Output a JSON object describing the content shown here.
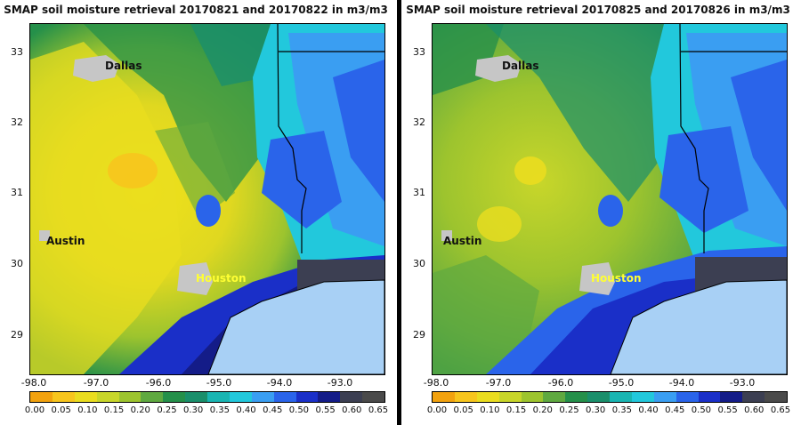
{
  "panels": [
    {
      "title": "SMAP soil moisture retrieval 20170821 and 20170822 in m3/m3",
      "lat_ticks": [
        "33",
        "32",
        "31",
        "30",
        "29"
      ],
      "lon_ticks": [
        "-98.0",
        "-97.0",
        "-96.0",
        "-95.0",
        "-94.0",
        "-93.0"
      ],
      "cities": {
        "dallas": "Dallas",
        "austin": "Austin",
        "houston": "Houston"
      }
    },
    {
      "title": "SMAP soil moisture retrieval 20170825 and 20170826 in m3/m3",
      "lat_ticks": [
        "33",
        "32",
        "31",
        "30",
        "29"
      ],
      "lon_ticks": [
        "-98.0",
        "-97.0",
        "-96.0",
        "-95.0",
        "-94.0",
        "-93.0"
      ],
      "cities": {
        "dallas": "Dallas",
        "austin": "Austin",
        "houston": "Houston"
      }
    }
  ],
  "colorbar": {
    "labels": [
      "0.00",
      "0.05",
      "0.10",
      "0.15",
      "0.20",
      "0.25",
      "0.30",
      "0.35",
      "0.40",
      "0.45",
      "0.50",
      "0.55",
      "0.60",
      "0.65"
    ],
    "colors": [
      "#f2a20f",
      "#f7c51d",
      "#eadd1f",
      "#c8d62a",
      "#9dc42e",
      "#5fa940",
      "#25904a",
      "#1a8f6b",
      "#19b5b2",
      "#22c8dc",
      "#3a9ef2",
      "#2a64ea",
      "#1a2fc8",
      "#141c88",
      "#3c3f52",
      "#4a4a4a"
    ]
  }
}
